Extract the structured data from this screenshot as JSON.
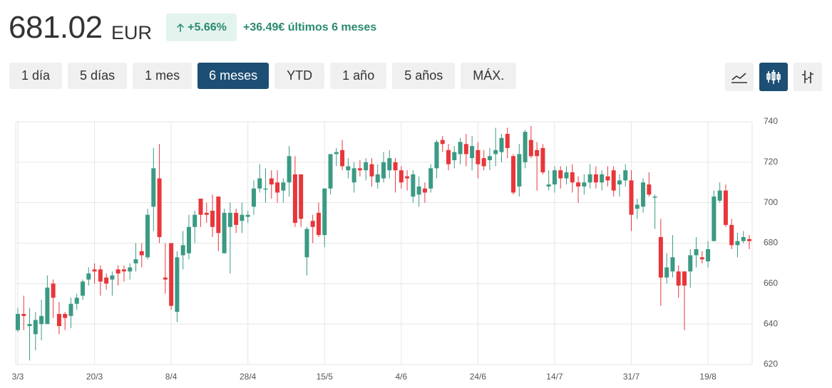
{
  "header": {
    "price": "681.02",
    "currency": "EUR",
    "change_pct": "+5.66%",
    "change_abs": "+36.49€ últimos 6 meses"
  },
  "ranges": [
    "1 día",
    "5 días",
    "1 mes",
    "6 meses",
    "YTD",
    "1 año",
    "5 años",
    "MÁX."
  ],
  "selected_range": "6 meses",
  "chart_data": {
    "type": "candlestick",
    "up_color": "#3b9a83",
    "down_color": "#e8363a",
    "grid": true,
    "ylim": [
      620,
      740
    ],
    "yticks": [
      620,
      640,
      660,
      680,
      700,
      720,
      740
    ],
    "categories": [
      "3/3",
      null,
      null,
      null,
      null,
      null,
      null,
      null,
      null,
      null,
      null,
      null,
      null,
      "20/3",
      null,
      null,
      null,
      null,
      null,
      null,
      null,
      null,
      null,
      null,
      null,
      null,
      "8/4",
      null,
      null,
      null,
      null,
      null,
      null,
      null,
      null,
      null,
      null,
      null,
      null,
      "28/4",
      null,
      null,
      null,
      null,
      null,
      null,
      null,
      null,
      null,
      null,
      null,
      null,
      "15/5",
      null,
      null,
      null,
      null,
      null,
      null,
      null,
      null,
      null,
      null,
      null,
      null,
      "4/6",
      null,
      null,
      null,
      null,
      null,
      null,
      null,
      null,
      null,
      null,
      null,
      null,
      "24/6",
      null,
      null,
      null,
      null,
      null,
      null,
      null,
      null,
      null,
      null,
      null,
      null,
      "14/7",
      null,
      null,
      null,
      null,
      null,
      null,
      null,
      null,
      null,
      null,
      null,
      null,
      "31/7",
      null,
      null,
      null,
      null,
      null,
      null,
      null,
      null,
      null,
      null,
      null,
      null,
      "19/8",
      null,
      null,
      null,
      null,
      null,
      null,
      null
    ],
    "open": [
      637,
      645,
      639,
      635,
      640,
      640,
      660,
      645,
      645,
      644,
      650,
      654,
      662,
      667,
      667,
      663,
      662,
      667,
      667,
      666,
      670,
      676,
      673,
      698,
      712,
      663,
      680,
      646,
      674,
      675,
      688,
      702,
      695,
      696,
      703,
      675,
      688,
      695,
      691,
      693,
      698,
      707,
      707,
      712,
      710,
      706,
      710,
      714,
      714,
      673,
      691,
      695,
      684,
      707,
      724,
      726,
      716,
      710,
      717,
      716,
      719,
      710,
      712,
      716,
      720,
      716,
      713,
      703,
      704,
      707,
      707,
      717,
      731,
      726,
      721,
      724,
      729,
      722,
      726,
      722,
      721,
      724,
      725,
      734,
      723,
      708,
      720,
      731,
      726,
      727,
      708,
      709,
      716,
      712,
      715,
      710,
      708,
      710,
      714,
      710,
      713,
      716,
      709,
      711,
      711,
      697,
      698,
      709,
      703,
      683,
      663,
      666,
      666,
      666,
      666,
      674,
      673,
      671,
      681,
      701,
      706,
      689,
      679,
      681,
      682
    ],
    "high": [
      648,
      654,
      648,
      646,
      652,
      664,
      662,
      651,
      646,
      653,
      655,
      662,
      668,
      670,
      669,
      665,
      666,
      669,
      669,
      670,
      680,
      680,
      697,
      727,
      729,
      680,
      680,
      676,
      686,
      694,
      696,
      702,
      700,
      704,
      703,
      697,
      700,
      697,
      700,
      696,
      711,
      719,
      717,
      716,
      716,
      712,
      728,
      723,
      714,
      688,
      694,
      700,
      707,
      724,
      727,
      731,
      722,
      720,
      721,
      722,
      722,
      719,
      725,
      726,
      722,
      718,
      716,
      716,
      713,
      710,
      719,
      731,
      733,
      729,
      728,
      732,
      734,
      733,
      730,
      726,
      727,
      737,
      734,
      737,
      724,
      729,
      736,
      738,
      730,
      729,
      716,
      718,
      718,
      718,
      719,
      713,
      714,
      719,
      718,
      716,
      718,
      718,
      714,
      719,
      716,
      702,
      712,
      715,
      704,
      692,
      675,
      684,
      669,
      666,
      677,
      683,
      676,
      681,
      706,
      710,
      709,
      692,
      685,
      686,
      684
    ],
    "low": [
      636,
      637,
      622,
      627,
      632,
      640,
      643,
      635,
      637,
      638,
      647,
      652,
      659,
      660,
      654,
      657,
      654,
      659,
      661,
      662,
      666,
      668,
      672,
      686,
      680,
      655,
      647,
      641,
      667,
      672,
      680,
      688,
      690,
      683,
      676,
      675,
      665,
      685,
      685,
      690,
      694,
      705,
      700,
      702,
      700,
      700,
      703,
      688,
      688,
      664,
      680,
      683,
      678,
      704,
      718,
      716,
      712,
      705,
      713,
      711,
      708,
      707,
      710,
      712,
      705,
      707,
      706,
      700,
      698,
      700,
      705,
      712,
      725,
      716,
      717,
      719,
      718,
      716,
      712,
      716,
      716,
      718,
      720,
      722,
      704,
      703,
      717,
      722,
      706,
      714,
      706,
      705,
      707,
      709,
      705,
      700,
      704,
      707,
      707,
      706,
      708,
      703,
      703,
      708,
      686,
      692,
      695,
      703,
      687,
      649,
      660,
      663,
      653,
      637,
      658,
      668,
      670,
      668,
      681,
      700,
      688,
      677,
      673,
      680,
      677
    ],
    "close": [
      645,
      644,
      640,
      642,
      644,
      658,
      653,
      639,
      643,
      650,
      653,
      661,
      665,
      666,
      661,
      660,
      664,
      665,
      666,
      668,
      672,
      674,
      694,
      717,
      683,
      662,
      649,
      673,
      679,
      688,
      694,
      694,
      694,
      688,
      685,
      695,
      695,
      689,
      694,
      694,
      707,
      712,
      707,
      709,
      705,
      710,
      723,
      690,
      692,
      687,
      688,
      684,
      707,
      724,
      725,
      718,
      718,
      717,
      716,
      720,
      713,
      714,
      720,
      722,
      716,
      710,
      712,
      714,
      708,
      705,
      717,
      730,
      729,
      719,
      725,
      730,
      724,
      728,
      719,
      718,
      723,
      726,
      732,
      727,
      705,
      724,
      735,
      723,
      723,
      715,
      709,
      716,
      712,
      715,
      710,
      708,
      710,
      714,
      710,
      714,
      711,
      706,
      711,
      716,
      694,
      699,
      710,
      704,
      703,
      663,
      668,
      673,
      659,
      659,
      674,
      677,
      672,
      677,
      703,
      706,
      689,
      679,
      681,
      683,
      681
    ]
  }
}
